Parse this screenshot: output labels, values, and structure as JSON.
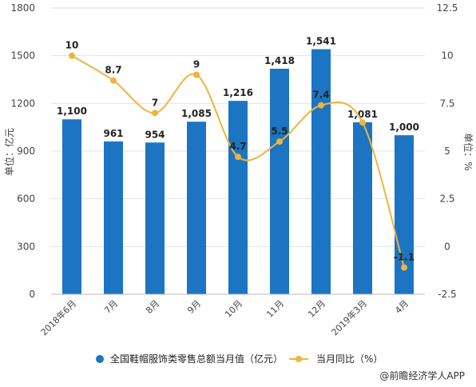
{
  "chart_data": {
    "type": "bar",
    "categories": [
      "2018年6月",
      "7月",
      "8月",
      "9月",
      "10月",
      "11月",
      "12月",
      "2019年3月",
      "4月"
    ],
    "series": [
      {
        "name": "全国鞋帽服饰类零售总额当月值（亿元）",
        "type": "bar",
        "axis": "left",
        "values": [
          1100,
          961,
          954,
          1085,
          1216,
          1418,
          1541,
          1081,
          1000
        ],
        "labels": [
          "1,100",
          "961",
          "954",
          "1,085",
          "1,216",
          "1,418",
          "1,541",
          "1,081",
          "1,000"
        ]
      },
      {
        "name": "当月同比（%）",
        "type": "line",
        "axis": "right",
        "values": [
          10,
          8.7,
          7,
          9,
          4.7,
          5.5,
          7.4,
          6.5,
          -1.1
        ],
        "labels": [
          "10",
          "8.7",
          "7",
          "9",
          "4.7",
          "5.5",
          "7.4",
          "",
          "-1.1"
        ]
      }
    ],
    "ylabel": "单位：亿元",
    "ylabel_right": "单位：%",
    "ylim": [
      0,
      1800
    ],
    "yticks": [
      0,
      300,
      600,
      900,
      1200,
      1500,
      1800
    ],
    "ylim_right": [
      -2.5,
      12.5
    ],
    "yticks_right": [
      "-2.5",
      "0",
      "2.5",
      "5",
      "7.5",
      "10",
      "12.5"
    ],
    "grid": true,
    "legend_position": "bottom",
    "colors": {
      "bar": "#1b75c2",
      "line": "#f0b43c",
      "grid": "#e2e2e2"
    }
  },
  "source": "@前瞻经济学人APP"
}
